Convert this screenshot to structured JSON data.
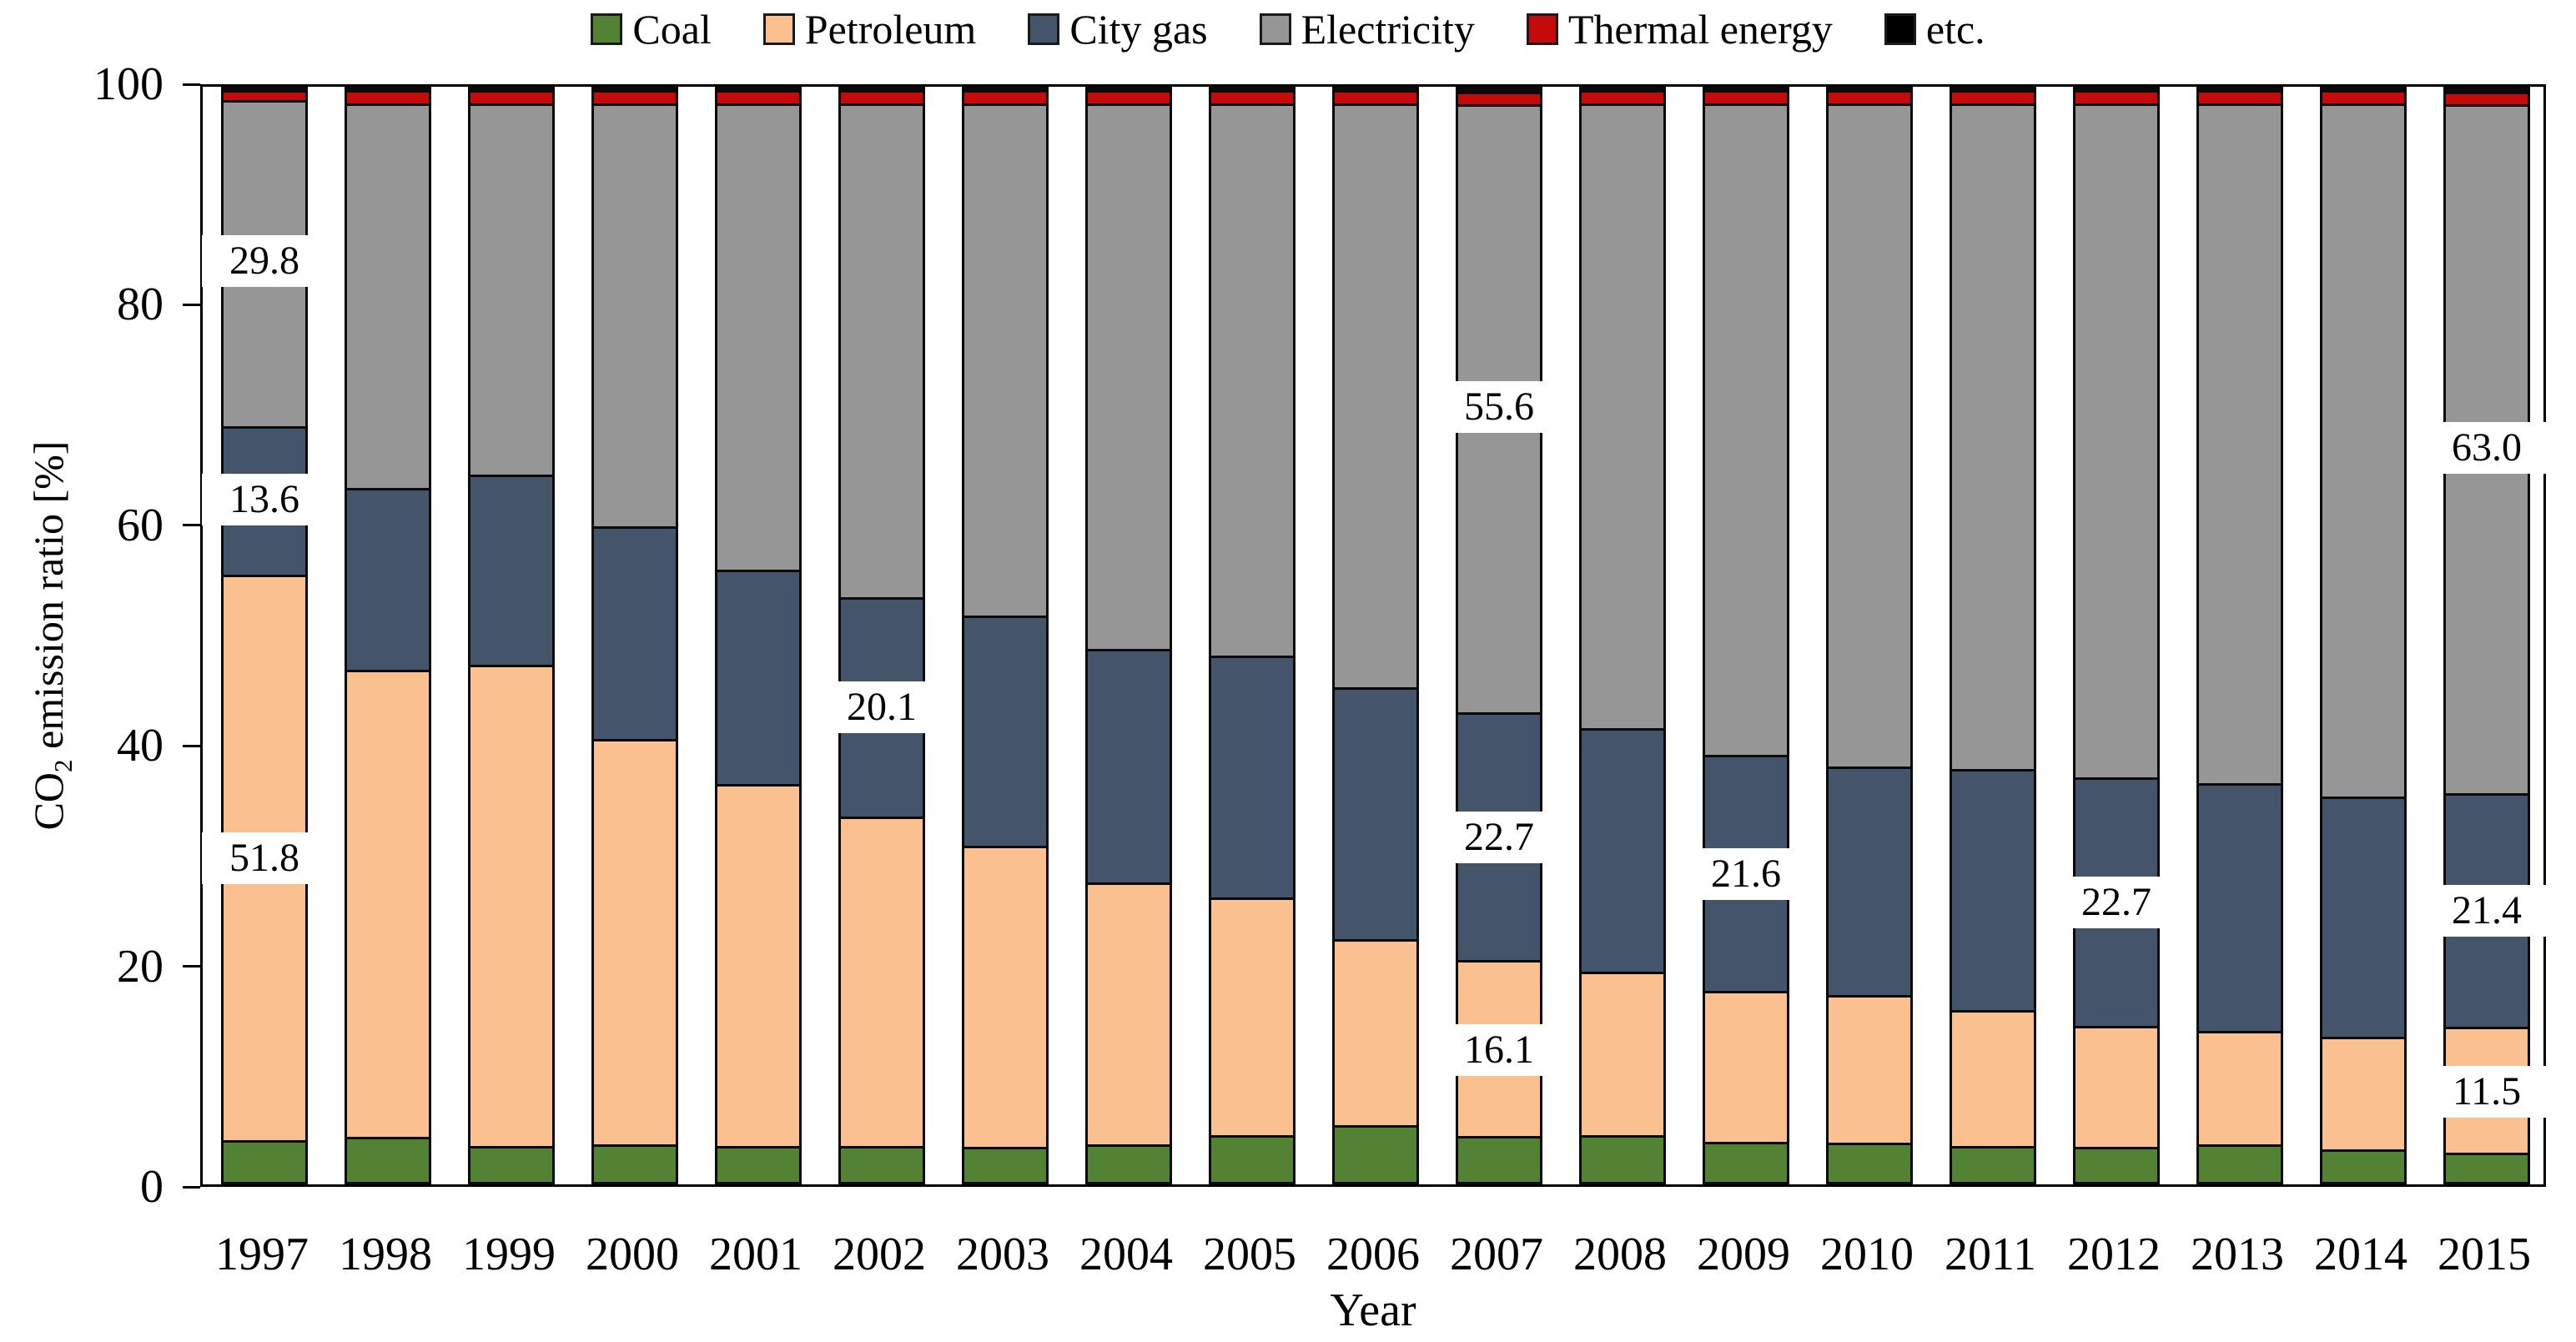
{
  "chart_data": {
    "type": "bar",
    "stacked": true,
    "grid": false,
    "legend_position": "top",
    "xlabel": "Year",
    "ylabel_co": "CO",
    "ylabel_sub": "2",
    "ylabel_rest": " emission ratio [%]",
    "ylim": [
      0,
      100
    ],
    "yticks": [
      "0",
      "20",
      "40",
      "60",
      "80",
      "100"
    ],
    "categories": [
      "1997",
      "1998",
      "1999",
      "2000",
      "2001",
      "2002",
      "2003",
      "2004",
      "2005",
      "2006",
      "2007",
      "2008",
      "2009",
      "2010",
      "2011",
      "2012",
      "2013",
      "2014",
      "2015"
    ],
    "series": [
      {
        "name": "Coal",
        "color": "#548235",
        "values": [
          3.8,
          4.1,
          3.3,
          3.4,
          3.3,
          3.3,
          3.2,
          3.4,
          4.3,
          5.2,
          4.2,
          4.3,
          3.7,
          3.6,
          3.3,
          3.2,
          3.4,
          3.0,
          2.7
        ]
      },
      {
        "name": "Petroleum",
        "color": "#FAC090",
        "values": [
          51.8,
          42.8,
          44.0,
          37.1,
          33.1,
          30.1,
          27.6,
          24.0,
          21.7,
          17.0,
          16.1,
          14.9,
          13.8,
          13.5,
          12.4,
          11.1,
          10.4,
          10.3,
          11.5
        ]
      },
      {
        "name": "City gas",
        "color": "#44546A",
        "values": [
          13.6,
          16.6,
          17.4,
          19.5,
          19.6,
          20.1,
          21.0,
          21.4,
          22.2,
          23.1,
          22.7,
          22.3,
          21.6,
          20.9,
          22.1,
          22.7,
          22.7,
          22.0,
          21.4
        ]
      },
      {
        "name": "Electricity",
        "color": "#969696",
        "values": [
          29.8,
          35.2,
          34.0,
          38.7,
          42.7,
          45.2,
          46.9,
          49.9,
          50.5,
          53.4,
          55.6,
          57.2,
          59.6,
          60.7,
          60.9,
          61.7,
          62.2,
          63.4,
          63.0
        ]
      },
      {
        "name": "Thermal energy",
        "color": "#C40A0A",
        "values": [
          0.9,
          1.2,
          1.2,
          1.2,
          1.2,
          1.2,
          1.2,
          1.2,
          1.2,
          1.2,
          1.2,
          1.2,
          1.2,
          1.2,
          1.2,
          1.2,
          1.2,
          1.2,
          1.2
        ]
      },
      {
        "name": "etc.",
        "color": "#000000",
        "values": [
          0.1,
          0.1,
          0.1,
          0.1,
          0.1,
          0.1,
          0.1,
          0.1,
          0.1,
          0.1,
          0.2,
          0.1,
          0.1,
          0.1,
          0.1,
          0.1,
          0.1,
          0.1,
          0.2
        ]
      }
    ],
    "annotations": [
      {
        "category": "1997",
        "series": "Petroleum",
        "text": "51.8"
      },
      {
        "category": "1997",
        "series": "City gas",
        "text": "13.6"
      },
      {
        "category": "1997",
        "series": "Electricity",
        "text": "29.8"
      },
      {
        "category": "2002",
        "series": "City gas",
        "text": "20.1"
      },
      {
        "category": "2007",
        "series": "Petroleum",
        "text": "16.1"
      },
      {
        "category": "2007",
        "series": "City gas",
        "text": "22.7"
      },
      {
        "category": "2007",
        "series": "Electricity",
        "text": "55.6"
      },
      {
        "category": "2009",
        "series": "City gas",
        "text": "21.6"
      },
      {
        "category": "2012",
        "series": "City gas",
        "text": "22.7"
      },
      {
        "category": "2015",
        "series": "Petroleum",
        "text": "11.5"
      },
      {
        "category": "2015",
        "series": "City gas",
        "text": "21.4"
      },
      {
        "category": "2015",
        "series": "Electricity",
        "text": "63.0"
      }
    ]
  }
}
